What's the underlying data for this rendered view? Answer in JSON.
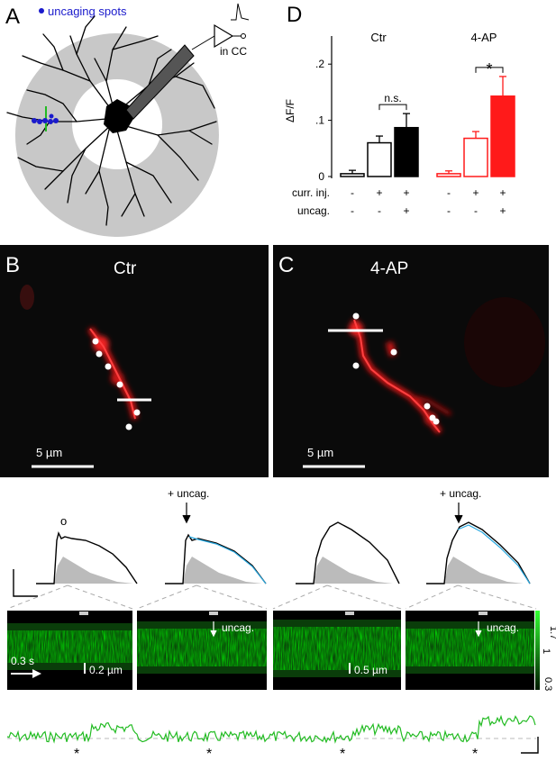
{
  "figure": {
    "panels": {
      "A": {
        "letter": "A",
        "legend_label": "uncaging spots",
        "legend_color": "#1a1acc",
        "recording_label": "in CC"
      },
      "B": {
        "letter": "B",
        "title": "Ctr",
        "scale_bar_label": "5 µm"
      },
      "C": {
        "letter": "C",
        "title": "4-AP",
        "scale_bar_label": "5 µm"
      },
      "D": {
        "letter": "D"
      }
    },
    "traces": {
      "open_circle_marker": "o",
      "uncag_labels": [
        "+ uncag.",
        "+ uncag."
      ],
      "linescan_uncag_labels": [
        "uncag.",
        "uncag."
      ],
      "time_label": "0.3 s",
      "space_bar_labels": [
        "0.2 µm",
        "0.5 µm"
      ],
      "colorbar_ticks": [
        "1.7",
        "1",
        "0.3"
      ],
      "asterisks": [
        "*",
        "*",
        "*",
        "*"
      ]
    }
  },
  "chart_data": {
    "type": "bar",
    "ylabel": "ΔF/F",
    "ylim": [
      0,
      0.25
    ],
    "yticks": [
      "0",
      ".1",
      ".2"
    ],
    "groups": [
      {
        "name": "Ctr",
        "color": "#000000",
        "bars": [
          {
            "value": 0.005,
            "error": 0.006,
            "fill": "open"
          },
          {
            "value": 0.06,
            "error": 0.012,
            "fill": "open"
          },
          {
            "value": 0.087,
            "error": 0.025,
            "fill": "filled"
          }
        ],
        "significance": "n.s."
      },
      {
        "name": "4-AP",
        "color": "#ff1a1a",
        "bars": [
          {
            "value": 0.005,
            "error": 0.005,
            "fill": "open"
          },
          {
            "value": 0.068,
            "error": 0.012,
            "fill": "open"
          },
          {
            "value": 0.143,
            "error": 0.035,
            "fill": "filled"
          }
        ],
        "significance": "*"
      }
    ],
    "row_labels": [
      "curr. inj.",
      "uncag."
    ],
    "row_symbols": [
      [
        "-",
        "+",
        "+",
        "-",
        "+",
        "+"
      ],
      [
        "-",
        "-",
        "+",
        "-",
        "-",
        "+"
      ]
    ]
  }
}
